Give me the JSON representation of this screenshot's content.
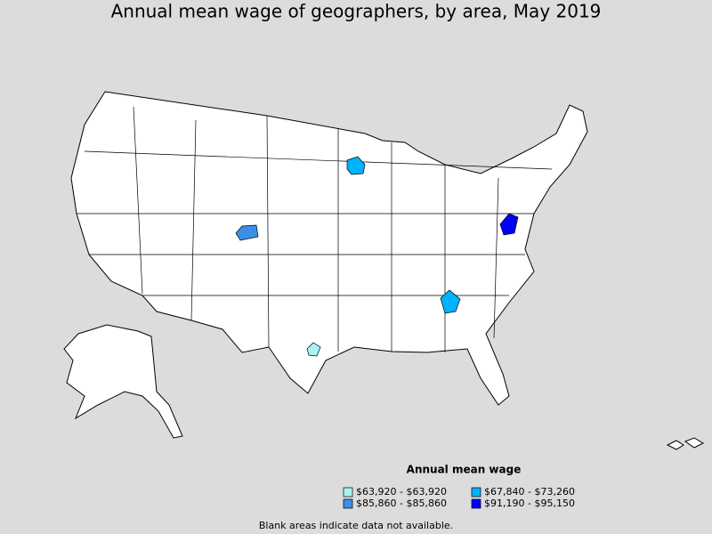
{
  "title": "Annual mean wage of geographers, by area, May 2019",
  "legend": {
    "title": "Annual mean wage",
    "items": [
      {
        "label": "$63,920 - $63,920",
        "color": "#a6f5f5"
      },
      {
        "label": "$67,840 - $73,260",
        "color": "#00b2ff"
      },
      {
        "label": "$85,860 - $85,860",
        "color": "#3b8ee6"
      },
      {
        "label": "$91,190 - $95,150",
        "color": "#0000ff"
      }
    ]
  },
  "note": "Blank areas indicate data not available."
}
